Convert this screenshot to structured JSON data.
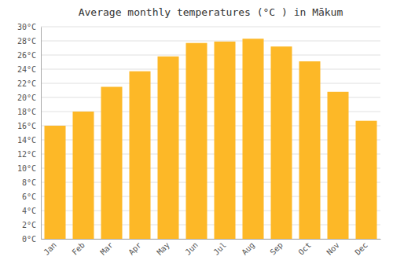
{
  "chart_data": {
    "type": "bar",
    "title": "Average monthly temperatures (°C ) in Mākum",
    "categories": [
      "Jan",
      "Feb",
      "Mar",
      "Apr",
      "May",
      "Jun",
      "Jul",
      "Aug",
      "Sep",
      "Oct",
      "Nov",
      "Dec"
    ],
    "values": [
      16.0,
      18.0,
      21.5,
      23.7,
      25.8,
      27.7,
      27.9,
      28.3,
      27.2,
      25.1,
      20.8,
      16.7
    ],
    "color": "#FDB827",
    "ylim": [
      0,
      30
    ],
    "yticks": [
      {
        "value": 0,
        "label": "0°C"
      },
      {
        "value": 2,
        "label": "2°C"
      },
      {
        "value": 4,
        "label": "4°C"
      },
      {
        "value": 6,
        "label": "6°C"
      },
      {
        "value": 8,
        "label": "8°C"
      },
      {
        "value": 10,
        "label": "10°C"
      },
      {
        "value": 12,
        "label": "12°C"
      },
      {
        "value": 14,
        "label": "14°C"
      },
      {
        "value": 16,
        "label": "16°C"
      },
      {
        "value": 18,
        "label": "18°C"
      },
      {
        "value": 20,
        "label": "20°C"
      },
      {
        "value": 22,
        "label": "22°C"
      },
      {
        "value": 24,
        "label": "24°C"
      },
      {
        "value": 26,
        "label": "26°C"
      },
      {
        "value": 28,
        "label": "28°C"
      },
      {
        "value": 30,
        "label": "30°C"
      }
    ],
    "grid": true
  }
}
